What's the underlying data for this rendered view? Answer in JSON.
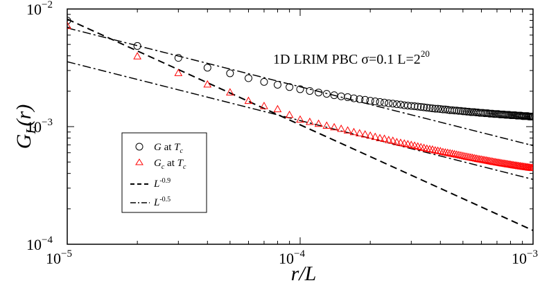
{
  "chart_data": {
    "type": "scatter",
    "xscale": "log",
    "yscale": "log",
    "xlim": [
      1e-05,
      0.001
    ],
    "ylim": [
      0.0001,
      0.01
    ],
    "xlabel": "r/L",
    "ylabel": "G_L(r)",
    "annotation": "1D LRIM PBC σ=0.1 L=2^20",
    "annotation_parts": {
      "main": "1D LRIM PBC σ=0.1 L=2",
      "sup": "20"
    },
    "x_ticks": [
      {
        "value": 1e-05,
        "base": "10",
        "exp": "−5"
      },
      {
        "value": 0.0001,
        "base": "10",
        "exp": "−4"
      },
      {
        "value": 0.001,
        "base": "10",
        "exp": "−3"
      }
    ],
    "y_ticks": [
      {
        "value": 0.0001,
        "base": "10",
        "exp": "−4"
      },
      {
        "value": 0.001,
        "base": "10",
        "exp": "−3"
      },
      {
        "value": 0.01,
        "base": "10",
        "exp": "−2"
      }
    ],
    "legend_position": "center-left",
    "legend": [
      {
        "label": "G  at T",
        "sub": "c",
        "marker": "circle"
      },
      {
        "label": "G",
        "sub_after": "c",
        "label2": "  at T",
        "sub": "c",
        "marker": "triangle"
      },
      {
        "label": "L",
        "sup": "-0.9",
        "marker": "dashed"
      },
      {
        "label": "L",
        "sup": "-0.5",
        "marker": "dashdot"
      }
    ],
    "series": [
      {
        "name": "G at T_c",
        "marker": "circle",
        "color": "#000000",
        "x": [
          1e-05,
          2e-05,
          3e-05,
          4e-05,
          5e-05,
          6e-05,
          7e-05,
          8e-05,
          9e-05,
          0.0001,
          0.00011,
          0.00012,
          0.00013,
          0.00014,
          0.00015,
          0.00016,
          0.00017,
          0.00018,
          0.00019,
          0.0002,
          0.00021,
          0.00022,
          0.00023,
          0.00024,
          0.00025,
          0.00026,
          0.00027,
          0.00028,
          0.00029,
          0.0003,
          0.00031,
          0.00032,
          0.00033,
          0.00034,
          0.00035,
          0.00036,
          0.00037,
          0.00038,
          0.00039,
          0.0004,
          0.00041,
          0.00042,
          0.00043,
          0.00044,
          0.00045,
          0.00046,
          0.00047,
          0.00048,
          0.00049,
          0.0005,
          0.00051,
          0.00052,
          0.00053,
          0.00054,
          0.00055,
          0.00056,
          0.00057,
          0.00058,
          0.00059,
          0.0006,
          0.00061,
          0.00062,
          0.00063,
          0.00064,
          0.00065,
          0.00066,
          0.00067,
          0.00068,
          0.00069,
          0.0007,
          0.00071,
          0.00072,
          0.00073,
          0.00074,
          0.00075,
          0.00076,
          0.00077,
          0.00078,
          0.00079,
          0.0008,
          0.00081,
          0.00082,
          0.00083,
          0.00084,
          0.00085,
          0.00086,
          0.00087,
          0.00088,
          0.00089,
          0.0009,
          0.00091,
          0.00092,
          0.00093,
          0.00094,
          0.00095,
          0.00096,
          0.00097,
          0.00098,
          0.00099,
          0.001
        ],
        "y": [
          0.00797,
          0.00485,
          0.00384,
          0.00317,
          0.00284,
          0.00258,
          0.0024,
          0.00227,
          0.00217,
          0.00208,
          0.00201,
          0.00195,
          0.0019,
          0.00185,
          0.00181,
          0.00178,
          0.00174,
          0.00171,
          0.00169,
          0.00166,
          0.00164,
          0.00162,
          0.0016,
          0.00158,
          0.00157,
          0.00155,
          0.00154,
          0.00152,
          0.00151,
          0.0015,
          0.00149,
          0.00148,
          0.00147,
          0.00146,
          0.00145,
          0.00144,
          0.00143,
          0.00142,
          0.00142,
          0.00141,
          0.0014,
          0.0014,
          0.00139,
          0.00138,
          0.00138,
          0.00137,
          0.00137,
          0.00136,
          0.00136,
          0.00135,
          0.00135,
          0.00134,
          0.00134,
          0.00133,
          0.00133,
          0.00133,
          0.00132,
          0.00132,
          0.00131,
          0.00131,
          0.00131,
          0.0013,
          0.0013,
          0.0013,
          0.00129,
          0.00129,
          0.00129,
          0.00128,
          0.00128,
          0.00128,
          0.00128,
          0.00127,
          0.00127,
          0.00127,
          0.00127,
          0.00126,
          0.00126,
          0.00126,
          0.00126,
          0.00125,
          0.00125,
          0.00125,
          0.00125,
          0.00125,
          0.00124,
          0.00124,
          0.00124,
          0.00124,
          0.00124,
          0.00123,
          0.00123,
          0.00123,
          0.00123,
          0.00123,
          0.00123,
          0.00122,
          0.00122,
          0.00122,
          0.00122,
          0.00122
        ]
      },
      {
        "name": "G_c at T_c",
        "marker": "triangle",
        "color": "#ff0000",
        "x": [
          1e-05,
          2e-05,
          3e-05,
          4e-05,
          5e-05,
          6e-05,
          7e-05,
          8e-05,
          9e-05,
          0.0001,
          0.00011,
          0.00012,
          0.00013,
          0.00014,
          0.00015,
          0.00016,
          0.00017,
          0.00018,
          0.00019,
          0.0002,
          0.00021,
          0.00022,
          0.00023,
          0.00024,
          0.00025,
          0.00026,
          0.00027,
          0.00028,
          0.00029,
          0.0003,
          0.00031,
          0.00032,
          0.00033,
          0.00034,
          0.00035,
          0.00036,
          0.00037,
          0.00038,
          0.00039,
          0.0004,
          0.00041,
          0.00042,
          0.00043,
          0.00044,
          0.00045,
          0.00046,
          0.00047,
          0.00048,
          0.00049,
          0.0005,
          0.00051,
          0.00052,
          0.00053,
          0.00054,
          0.00055,
          0.00056,
          0.00057,
          0.00058,
          0.00059,
          0.0006,
          0.00061,
          0.00062,
          0.00063,
          0.00064,
          0.00065,
          0.00066,
          0.00067,
          0.00068,
          0.00069,
          0.0007,
          0.00071,
          0.00072,
          0.00073,
          0.00074,
          0.00075,
          0.00076,
          0.00077,
          0.00078,
          0.00079,
          0.0008,
          0.00081,
          0.00082,
          0.00083,
          0.00084,
          0.00085,
          0.00086,
          0.00087,
          0.00088,
          0.00089,
          0.0009,
          0.00091,
          0.00092,
          0.00093,
          0.00094,
          0.00095,
          0.00096,
          0.00097,
          0.00098,
          0.00099,
          0.001
        ],
        "y": [
          0.0072,
          0.00397,
          0.00286,
          0.00229,
          0.00196,
          0.00166,
          0.0015,
          0.00141,
          0.00126,
          0.00115,
          0.0011,
          0.00106,
          0.00102,
          0.00099,
          0.00096,
          0.00093,
          0.0009,
          0.00088,
          0.00086,
          0.00084,
          0.00082,
          0.0008,
          0.00079,
          0.00077,
          0.00076,
          0.00074,
          0.00073,
          0.00072,
          0.00071,
          0.0007,
          0.00069,
          0.00068,
          0.00067,
          0.00066,
          0.00065,
          0.000645,
          0.00064,
          0.00063,
          0.000625,
          0.00062,
          0.00061,
          0.000605,
          0.0006,
          0.000595,
          0.00059,
          0.000585,
          0.00058,
          0.000575,
          0.00057,
          0.000565,
          0.00056,
          0.000556,
          0.000552,
          0.000548,
          0.000544,
          0.00054,
          0.000536,
          0.000532,
          0.000529,
          0.000526,
          0.000523,
          0.00052,
          0.000517,
          0.000514,
          0.000511,
          0.000508,
          0.000505,
          0.000502,
          0.0005,
          0.000497,
          0.000495,
          0.000493,
          0.00049,
          0.000488,
          0.000486,
          0.000484,
          0.000482,
          0.00048,
          0.000478,
          0.000476,
          0.000474,
          0.000472,
          0.00047,
          0.000468,
          0.000467,
          0.000465,
          0.000463,
          0.000462,
          0.00046,
          0.000459,
          0.000457,
          0.000456,
          0.000454,
          0.000453,
          0.000452,
          0.00045,
          0.000449,
          0.000448,
          0.000447,
          0.000446
        ]
      }
    ],
    "lines": [
      {
        "label": "L^-0.9",
        "style": "dashed",
        "x": [
          1e-05,
          0.001
        ],
        "y": [
          0.0082,
          0.000131
        ]
      },
      {
        "label": "L^-0.5",
        "style": "dashdot",
        "x": [
          1e-05,
          0.001
        ],
        "y": [
          0.0069,
          0.00069
        ]
      },
      {
        "label": "L^-0.5",
        "style": "dashdot",
        "x": [
          1e-05,
          0.001
        ],
        "y": [
          0.00356,
          0.000356
        ]
      }
    ]
  }
}
